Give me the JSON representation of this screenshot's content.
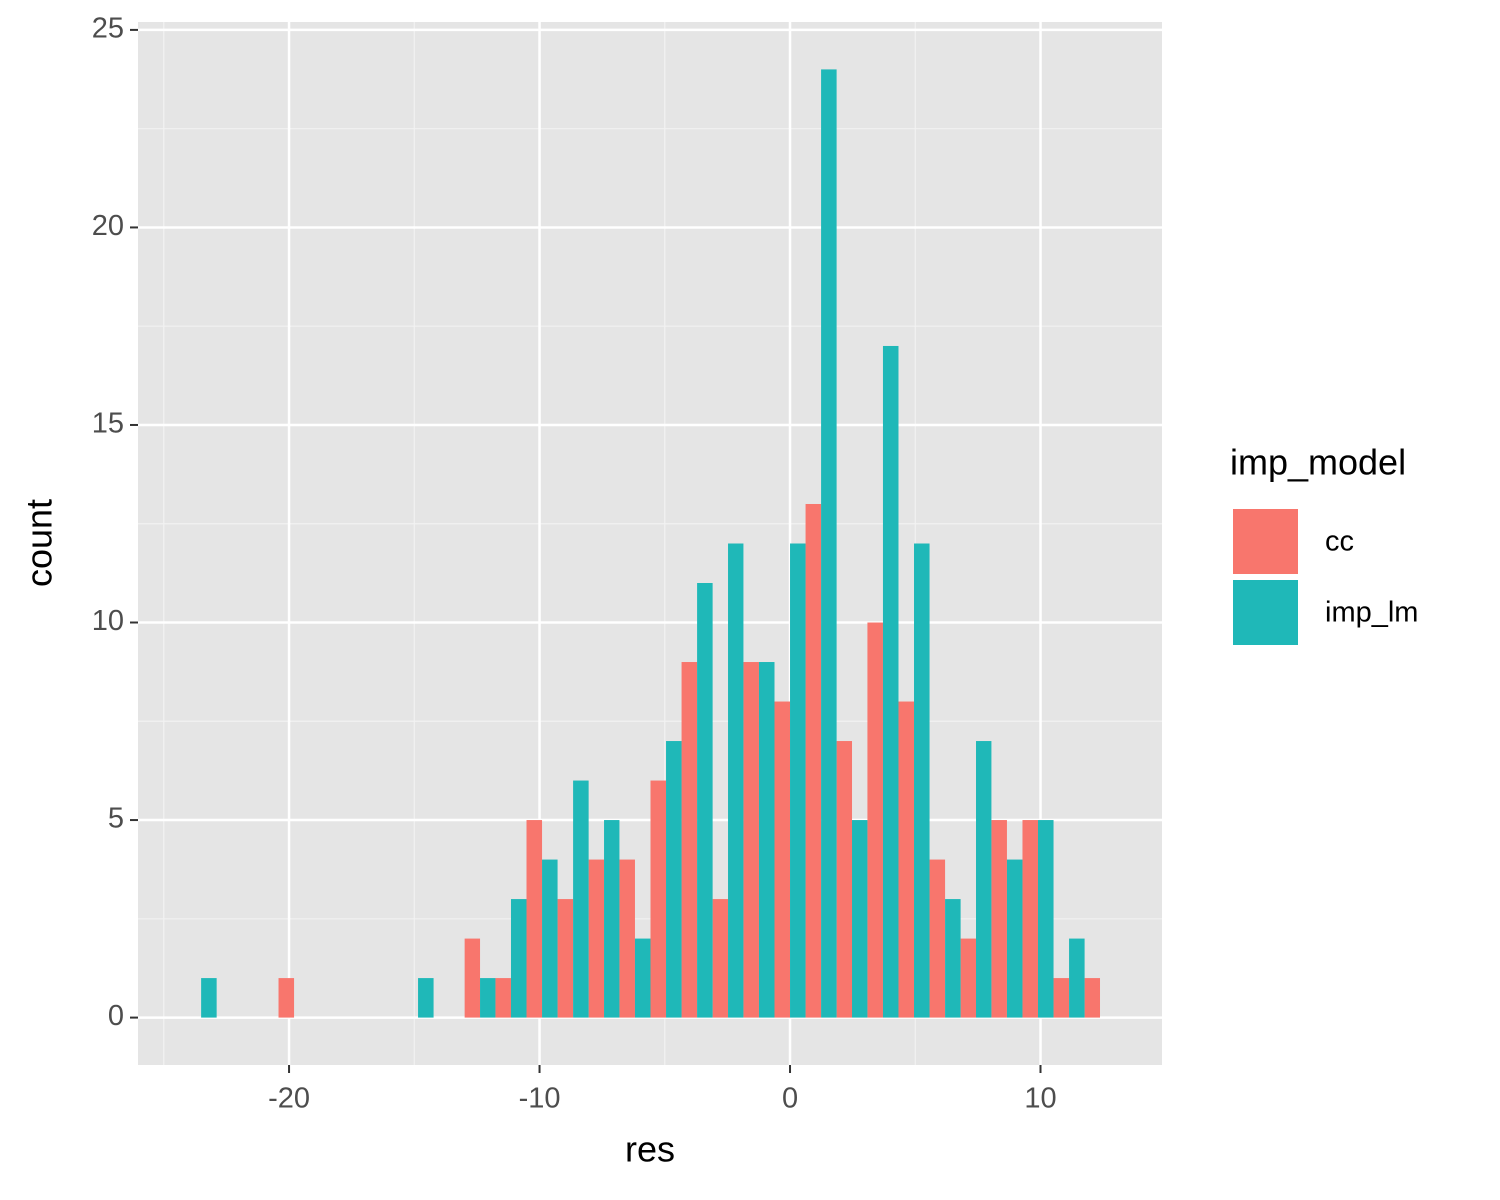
{
  "chart_data": {
    "type": "histogram",
    "x_label": "res",
    "y_label": "count",
    "legend_title": "imp_model",
    "legend": "right",
    "bins": [
      -24.13,
      -22.89,
      -21.65,
      -20.42,
      -19.18,
      -17.94,
      -16.71,
      -15.47,
      -14.23,
      -12.99,
      -11.76,
      -10.52,
      -9.28,
      -8.04,
      -6.81,
      -5.57,
      -4.33,
      -3.09,
      -1.86,
      -0.62,
      0.62,
      1.86,
      3.09,
      4.33,
      5.57,
      6.81,
      8.04,
      9.28,
      10.52,
      11.76,
      12.99
    ],
    "series": [
      {
        "name": "cc",
        "color": "#f8766d",
        "values": [
          0,
          0,
          0,
          1,
          0,
          0,
          0,
          0,
          0,
          2,
          1,
          5,
          3,
          4,
          4,
          6,
          9,
          3,
          9,
          8,
          13,
          7,
          10,
          8,
          4,
          2,
          5,
          5,
          1,
          1
        ]
      },
      {
        "name": "imp_lm",
        "color": "#1fb8b8",
        "values": [
          1,
          0,
          0,
          0,
          0,
          0,
          0,
          1,
          0,
          1,
          3,
          4,
          6,
          5,
          2,
          7,
          11,
          12,
          9,
          12,
          24,
          5,
          17,
          12,
          3,
          7,
          4,
          5,
          2,
          0
        ]
      }
    ],
    "xlim": [
      -26.03,
      14.85
    ],
    "xticks": [
      -20,
      -10,
      0,
      10
    ],
    "ylim": [
      -1.2,
      25.2
    ],
    "yticks": [
      0,
      5,
      10,
      15,
      20,
      25
    ],
    "grid": true
  }
}
